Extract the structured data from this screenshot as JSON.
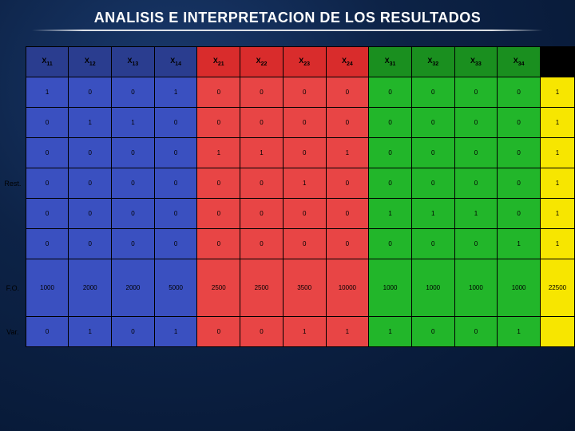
{
  "title": "ANALISIS E INTERPRETACION  DE LOS RESULTADOS",
  "row_labels": [
    "Rest.",
    "F.O.",
    "Var."
  ],
  "table": {
    "type": "table",
    "header_bg_colors": [
      "#2a3d8f",
      "#2a3d8f",
      "#2a3d8f",
      "#2a3d8f",
      "#d92c2c",
      "#d92c2c",
      "#d92c2c",
      "#d92c2c",
      "#1a8f1f",
      "#1a8f1f",
      "#1a8f1f",
      "#1a8f1f",
      "#000000"
    ],
    "body_bg_colors": [
      "#3a50c0",
      "#3a50c0",
      "#3a50c0",
      "#3a50c0",
      "#e84545",
      "#e84545",
      "#e84545",
      "#e84545",
      "#22b62a",
      "#22b62a",
      "#22b62a",
      "#22b62a",
      "#f7e600"
    ],
    "headers": [
      {
        "base": "X",
        "sub": "11"
      },
      {
        "base": "X",
        "sub": "12"
      },
      {
        "base": "X",
        "sub": "13"
      },
      {
        "base": "X",
        "sub": "14"
      },
      {
        "base": "X",
        "sub": "21"
      },
      {
        "base": "X",
        "sub": "22"
      },
      {
        "base": "X",
        "sub": "23"
      },
      {
        "base": "X",
        "sub": "24"
      },
      {
        "base": "X",
        "sub": "31"
      },
      {
        "base": "X",
        "sub": "32"
      },
      {
        "base": "X",
        "sub": "33"
      },
      {
        "base": "X",
        "sub": "34"
      },
      {
        "base": "",
        "sub": ""
      }
    ],
    "rows": [
      [
        "1",
        "0",
        "0",
        "1",
        "0",
        "0",
        "0",
        "0",
        "0",
        "0",
        "0",
        "0",
        "1"
      ],
      [
        "0",
        "1",
        "1",
        "0",
        "0",
        "0",
        "0",
        "0",
        "0",
        "0",
        "0",
        "0",
        "1"
      ],
      [
        "0",
        "0",
        "0",
        "0",
        "1",
        "1",
        "0",
        "1",
        "0",
        "0",
        "0",
        "0",
        "1"
      ],
      [
        "0",
        "0",
        "0",
        "0",
        "0",
        "0",
        "1",
        "0",
        "0",
        "0",
        "0",
        "0",
        "1"
      ],
      [
        "0",
        "0",
        "0",
        "0",
        "0",
        "0",
        "0",
        "0",
        "1",
        "1",
        "1",
        "0",
        "1"
      ],
      [
        "0",
        "0",
        "0",
        "0",
        "0",
        "0",
        "0",
        "0",
        "0",
        "0",
        "0",
        "1",
        "1"
      ],
      [
        "1000",
        "2000",
        "2000",
        "5000",
        "2500",
        "2500",
        "3500",
        "10000",
        "1000",
        "1000",
        "1000",
        "1000",
        "22500"
      ],
      [
        "0",
        "1",
        "0",
        "1",
        "0",
        "0",
        "1",
        "1",
        "1",
        "0",
        "0",
        "1",
        ""
      ]
    ],
    "text_colors": {
      "header": "#000000",
      "body": "#000000"
    },
    "border_color": "#000000",
    "font_family": "Arial",
    "font_size_pt": 8
  },
  "background": {
    "gradient_inner": "#1a3a6e",
    "gradient_outer": "#051530"
  }
}
